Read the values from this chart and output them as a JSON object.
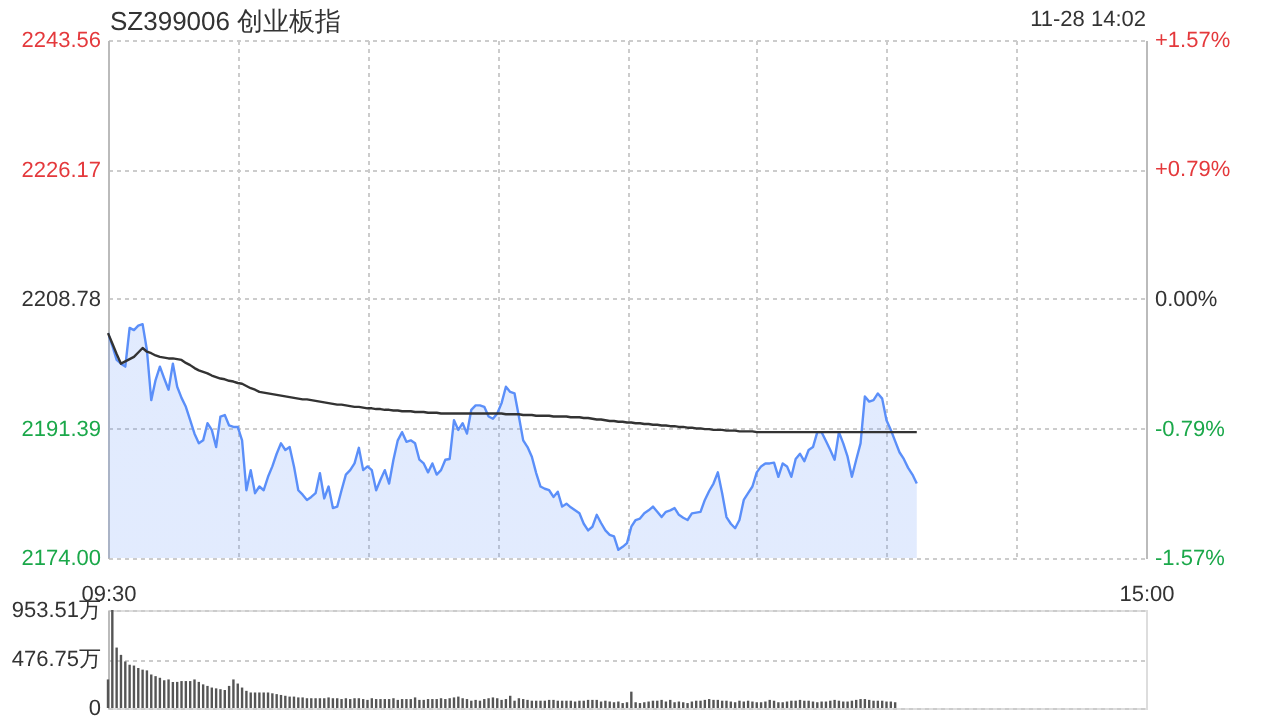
{
  "chart_data": [
    {
      "type": "line",
      "title": "SZ399006 创业板指",
      "subtitle": "11-28 14:02",
      "categories": [
        null,
        null,
        null,
        null,
        null,
        null,
        null,
        null,
        null,
        null,
        null,
        null,
        null,
        null,
        null,
        null,
        null,
        null,
        null,
        null,
        null,
        null,
        null,
        null,
        null,
        null,
        null,
        null,
        null,
        null,
        null,
        null,
        null,
        null,
        null,
        null,
        null,
        null,
        null,
        null,
        null,
        null,
        null,
        null,
        null,
        null,
        null,
        null,
        null,
        null,
        null,
        null,
        null,
        null,
        null,
        null,
        null,
        null,
        null,
        null,
        null,
        null,
        null,
        null,
        null,
        null,
        null,
        null,
        null,
        null,
        null,
        null,
        null,
        null,
        null,
        null,
        null,
        null,
        null,
        null,
        null,
        null,
        null,
        null,
        null,
        null,
        null,
        null,
        null,
        null,
        null,
        null,
        null,
        null,
        null,
        null,
        null,
        null,
        null,
        null,
        null,
        null,
        null,
        null,
        null,
        null,
        null,
        null,
        null,
        null,
        null,
        null,
        null,
        null,
        null,
        null,
        null,
        null,
        null,
        null,
        null,
        null,
        null,
        null,
        null,
        null,
        null,
        null,
        null,
        null,
        null,
        null,
        null,
        null,
        null,
        null,
        null,
        null,
        null,
        null,
        null,
        null,
        null,
        null,
        null,
        null,
        null,
        null,
        null,
        null,
        null,
        null,
        null,
        null,
        null,
        null,
        null,
        null,
        null,
        null,
        null,
        null,
        null,
        null,
        null,
        null,
        null,
        null,
        null,
        null,
        null,
        null,
        null,
        null,
        null,
        null,
        null,
        null,
        null,
        null,
        null,
        null,
        null,
        null,
        null,
        null,
        null,
        null,
        null,
        null,
        null,
        null,
        null,
        null,
        null,
        null,
        null,
        null,
        null,
        null,
        null,
        null,
        null,
        null,
        null,
        null,
        null,
        null,
        null,
        null,
        null,
        null,
        null,
        null,
        null,
        null,
        null,
        null,
        null,
        null,
        null,
        null,
        null,
        null,
        null,
        null,
        null,
        null,
        null,
        null,
        null,
        null,
        null,
        null,
        null,
        null,
        null,
        null,
        null,
        null,
        null
      ],
      "ylim": [
        2174,
        2243.56
      ],
      "yticks": [
        {
          "value": 2174,
          "label": "2174.00"
        },
        2191.39,
        2208.78,
        2226.17,
        2243.56
      ],
      "y2lim": [
        -1.57,
        1.57
      ],
      "y2ticks": [
        {
          "value": -1.57,
          "label": "-1.57%"
        },
        {
          "value": -0.79,
          "label": "-0.79%"
        },
        {
          "value": 0,
          "label": "0.00%"
        },
        {
          "value": 0.79,
          "label": "+0.79%"
        },
        {
          "value": 1.57,
          "label": "+1.57%"
        }
      ],
      "tick_labels": "y",
      "grid": true,
      "series": [
        {
          "type": "area",
          "color": "#5b8ff9",
          "values": [
            2204.2,
            2202.5,
            2200.6,
            2200.1,
            2199.7,
            2204.9,
            2204.6,
            2205.2,
            2205.4,
            2201.9,
            2195.2,
            2197.9,
            2199.7,
            2198.1,
            2196.6,
            2200.1,
            2197.0,
            2195.5,
            2194.3,
            2192.5,
            2190.7,
            2189.4,
            2189.8,
            2192.1,
            2191.2,
            2188.9,
            2193.0,
            2193.2,
            2191.8,
            2191.6,
            2191.6,
            2189.8,
            2183.1,
            2185.8,
            2182.7,
            2183.6,
            2183.1,
            2184.9,
            2186.3,
            2188.0,
            2189.4,
            2188.5,
            2188.9,
            2186.3,
            2183.1,
            2182.5,
            2181.8,
            2182.2,
            2182.7,
            2185.4,
            2182.0,
            2183.6,
            2180.7,
            2180.9,
            2183.1,
            2185.2,
            2185.8,
            2186.7,
            2188.8,
            2185.8,
            2186.3,
            2185.8,
            2183.1,
            2184.5,
            2185.8,
            2184.0,
            2187.2,
            2189.8,
            2190.9,
            2189.6,
            2189.8,
            2189.4,
            2187.2,
            2186.7,
            2185.5,
            2186.7,
            2185.2,
            2185.8,
            2187.2,
            2187.3,
            2192.5,
            2191.2,
            2192.1,
            2190.7,
            2193.9,
            2194.5,
            2194.5,
            2194.3,
            2193.0,
            2192.7,
            2193.4,
            2194.8,
            2197.0,
            2196.3,
            2196.1,
            2193.0,
            2189.8,
            2188.9,
            2187.6,
            2185.4,
            2183.6,
            2183.3,
            2183.1,
            2182.2,
            2182.9,
            2180.9,
            2181.3,
            2180.8,
            2180.4,
            2180.0,
            2178.6,
            2177.7,
            2178.2,
            2179.8,
            2178.7,
            2177.7,
            2177.1,
            2176.9,
            2175.1,
            2175.5,
            2176.0,
            2178.2,
            2179.1,
            2179.3,
            2180.0,
            2180.4,
            2180.9,
            2180.2,
            2179.5,
            2180.2,
            2180.4,
            2180.7,
            2179.8,
            2179.4,
            2179.1,
            2180.0,
            2180.1,
            2180.2,
            2181.8,
            2183.0,
            2184.0,
            2185.5,
            2182.7,
            2179.5,
            2178.6,
            2178.0,
            2179.1,
            2181.8,
            2182.7,
            2183.6,
            2185.5,
            2186.3,
            2186.7,
            2186.7,
            2186.8,
            2184.9,
            2186.7,
            2186.3,
            2184.9,
            2187.3,
            2188.0,
            2187.0,
            2188.5,
            2188.9,
            2190.9,
            2190.9,
            2189.7,
            2188.5,
            2187.2,
            2190.9,
            2189.4,
            2187.6,
            2184.9,
            2187.2,
            2189.4,
            2195.7,
            2195.0,
            2195.2,
            2196.1,
            2195.4,
            2192.5,
            2191.2,
            2189.7,
            2188.2,
            2187.3,
            2186.1,
            2185.2,
            2184.0,
            null,
            null,
            null,
            null,
            null,
            null,
            null,
            null,
            null,
            null,
            null,
            null,
            null,
            null,
            null,
            null,
            null,
            null,
            null,
            null,
            null,
            null,
            null,
            null,
            null,
            null,
            null,
            null,
            null,
            null,
            null,
            null,
            null,
            null,
            null,
            null,
            null,
            null,
            null,
            null,
            null,
            null,
            null,
            null,
            null,
            null,
            null,
            null,
            null,
            null,
            null,
            null,
            null
          ]
        },
        {
          "color": "#333333",
          "values": [
            2204.2,
            2202.8,
            2201.4,
            2200.1,
            2200.4,
            2200.7,
            2201.0,
            2201.6,
            2202.2,
            2201.7,
            2201.5,
            2201.2,
            2201.0,
            2200.9,
            2200.8,
            2200.8,
            2200.7,
            2200.6,
            2200.2,
            2199.9,
            2199.5,
            2199.2,
            2199.0,
            2198.8,
            2198.5,
            2198.3,
            2198.1,
            2198.0,
            2197.8,
            2197.7,
            2197.5,
            2197.4,
            2197.1,
            2196.8,
            2196.6,
            2196.3,
            2196.2,
            2196.1,
            2196.0,
            2195.9,
            2195.8,
            2195.7,
            2195.6,
            2195.5,
            2195.4,
            2195.3,
            2195.3,
            2195.2,
            2195.1,
            2195.0,
            2194.9,
            2194.8,
            2194.7,
            2194.6,
            2194.6,
            2194.5,
            2194.4,
            2194.3,
            2194.3,
            2194.2,
            2194.1,
            2194.1,
            2194.0,
            2194.0,
            2193.9,
            2193.9,
            2193.8,
            2193.8,
            2193.7,
            2193.7,
            2193.7,
            2193.6,
            2193.6,
            2193.6,
            2193.5,
            2193.5,
            2193.5,
            2193.4,
            2193.4,
            2193.4,
            2193.4,
            2193.4,
            2193.4,
            2193.4,
            2193.4,
            2193.4,
            2193.4,
            2193.4,
            2193.4,
            2193.4,
            2193.4,
            2193.4,
            2193.3,
            2193.3,
            2193.3,
            2193.3,
            2193.2,
            2193.2,
            2193.2,
            2193.1,
            2193.1,
            2193.1,
            2193.1,
            2193.0,
            2193.0,
            2193.0,
            2193.0,
            2192.9,
            2192.9,
            2192.9,
            2192.8,
            2192.8,
            2192.7,
            2192.6,
            2192.6,
            2192.5,
            2192.4,
            2192.4,
            2192.3,
            2192.3,
            2192.2,
            2192.2,
            2192.1,
            2192.1,
            2192.0,
            2192.0,
            2191.9,
            2191.9,
            2191.8,
            2191.8,
            2191.7,
            2191.7,
            2191.6,
            2191.6,
            2191.5,
            2191.5,
            2191.4,
            2191.4,
            2191.3,
            2191.3,
            2191.2,
            2191.2,
            2191.2,
            2191.1,
            2191.1,
            2191.1,
            2191.0,
            2191.0,
            2191.0,
            2191.0,
            2190.9,
            2190.9,
            2190.9,
            2190.9,
            2190.9,
            2190.9,
            2190.9,
            2190.9,
            2190.9,
            2190.9,
            2190.9,
            2190.9,
            2190.9,
            2190.9,
            2190.9,
            2190.9,
            2190.9,
            2190.9,
            2190.9,
            2190.9,
            2190.9,
            2190.9,
            2190.9,
            2190.9,
            2190.9,
            2190.9,
            2190.9,
            2190.9,
            2190.9,
            2190.9,
            2190.9,
            2190.9,
            2190.9,
            2190.9,
            2190.9,
            2190.9,
            2190.9,
            2190.9,
            null,
            null,
            null,
            null,
            null,
            null,
            null,
            null,
            null,
            null,
            null,
            null,
            null,
            null,
            null,
            null,
            null,
            null,
            null,
            null,
            null,
            null,
            null,
            null,
            null,
            null,
            null,
            null,
            null,
            null,
            null,
            null,
            null,
            null,
            null,
            null,
            null,
            null,
            null,
            null,
            null,
            null,
            null,
            null,
            null,
            null,
            null,
            null,
            null,
            null,
            null,
            null,
            null
          ]
        }
      ]
    },
    {
      "type": "bar",
      "color": "#555555",
      "categories": [
        "09:30",
        null,
        null,
        null,
        null,
        null,
        null,
        null,
        null,
        null,
        null,
        null,
        null,
        null,
        null,
        null,
        null,
        null,
        null,
        null,
        null,
        null,
        null,
        null,
        null,
        null,
        null,
        null,
        null,
        null,
        null,
        null,
        null,
        null,
        null,
        null,
        null,
        null,
        null,
        null,
        null,
        null,
        null,
        null,
        null,
        null,
        null,
        null,
        null,
        null,
        null,
        null,
        null,
        null,
        null,
        null,
        null,
        null,
        null,
        null,
        null,
        null,
        null,
        null,
        null,
        null,
        null,
        null,
        null,
        null,
        null,
        null,
        null,
        null,
        null,
        null,
        null,
        null,
        null,
        null,
        null,
        null,
        null,
        null,
        null,
        null,
        null,
        null,
        null,
        null,
        null,
        null,
        null,
        null,
        null,
        null,
        null,
        null,
        null,
        null,
        null,
        null,
        null,
        null,
        null,
        null,
        null,
        null,
        null,
        null,
        null,
        null,
        null,
        null,
        null,
        null,
        null,
        null,
        null,
        null,
        null,
        null,
        null,
        null,
        null,
        null,
        null,
        null,
        null,
        null,
        null,
        null,
        null,
        null,
        null,
        null,
        null,
        null,
        null,
        null,
        null,
        null,
        null,
        null,
        null,
        null,
        null,
        null,
        null,
        null,
        null,
        null,
        null,
        null,
        null,
        null,
        null,
        null,
        null,
        null,
        null,
        null,
        null,
        null,
        null,
        null,
        null,
        null,
        null,
        null,
        null,
        null,
        null,
        null,
        null,
        null,
        null,
        null,
        null,
        null,
        null,
        null,
        null,
        null,
        null,
        null,
        null,
        null,
        null,
        null,
        null,
        null,
        null,
        null,
        null,
        null,
        null,
        null,
        null,
        null,
        null,
        null,
        null,
        null,
        null,
        null,
        null,
        null,
        null,
        null,
        null,
        null,
        null,
        null,
        null,
        null,
        null,
        null,
        null,
        null,
        null,
        null,
        null,
        null,
        null,
        null,
        null,
        null,
        null,
        null,
        null,
        null,
        null,
        null,
        null,
        null,
        null,
        null,
        null,
        null,
        "15:00"
      ],
      "ylim": [
        0,
        953.51
      ],
      "yticks": [
        0,
        {
          "value": 476.75,
          "label": "476.75万"
        },
        {
          "value": 953.51,
          "label": "953.51万"
        }
      ],
      "grid": "y",
      "values": [
        278,
        953.51,
        588,
        517,
        453,
        421,
        413,
        389,
        373,
        366,
        326,
        310,
        294,
        270,
        278,
        254,
        254,
        262,
        262,
        262,
        278,
        254,
        230,
        215,
        199,
        191,
        183,
        175,
        215,
        278,
        238,
        199,
        167,
        151,
        151,
        151,
        151,
        151,
        143,
        135,
        127,
        119,
        111,
        111,
        103,
        103,
        95,
        95,
        95,
        95,
        95,
        103,
        95,
        95,
        87,
        95,
        87,
        95,
        95,
        87,
        79,
        95,
        87,
        87,
        87,
        87,
        95,
        79,
        87,
        87,
        87,
        103,
        79,
        79,
        87,
        87,
        87,
        95,
        87,
        95,
        103,
        111,
        95,
        87,
        71,
        79,
        71,
        87,
        95,
        103,
        95,
        79,
        87,
        119,
        71,
        95,
        87,
        79,
        71,
        71,
        71,
        71,
        79,
        79,
        71,
        71,
        71,
        71,
        63,
        71,
        71,
        79,
        79,
        79,
        63,
        71,
        63,
        56,
        63,
        48,
        56,
        159,
        56,
        48,
        56,
        63,
        71,
        71,
        79,
        63,
        79,
        56,
        63,
        56,
        48,
        63,
        71,
        71,
        79,
        87,
        79,
        79,
        71,
        71,
        63,
        56,
        71,
        63,
        71,
        63,
        56,
        56,
        63,
        79,
        71,
        56,
        56,
        63,
        71,
        71,
        79,
        71,
        71,
        63,
        56,
        63,
        63,
        71,
        79,
        71,
        63,
        63,
        71,
        79,
        87,
        87,
        79,
        71,
        71,
        71,
        63,
        63,
        56,
        null,
        null,
        null,
        null,
        null,
        null,
        null,
        null,
        null,
        null,
        null,
        null,
        null,
        null,
        null,
        null,
        null,
        null,
        null,
        null,
        null,
        null,
        null,
        null,
        null,
        null,
        null,
        null,
        null,
        null,
        null,
        null,
        null,
        null,
        null,
        null,
        null,
        null,
        null,
        null,
        null,
        null,
        null,
        null,
        null,
        null,
        null,
        null,
        null,
        null,
        null,
        null,
        null,
        null,
        null,
        null,
        null,
        null
      ]
    }
  ]
}
